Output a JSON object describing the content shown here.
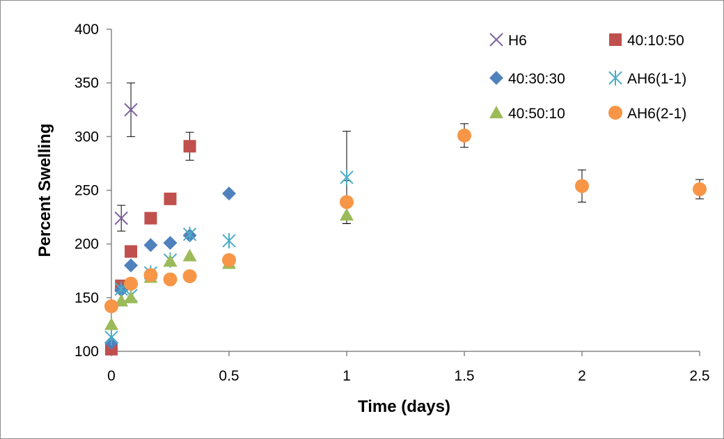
{
  "chart_data": {
    "type": "scatter",
    "xlabel": "Time (days)",
    "ylabel": "Percent Swelling",
    "xlim": [
      0,
      2.5
    ],
    "ylim": [
      100,
      400
    ],
    "xticks": [
      "0",
      "0.5",
      "1",
      "1.5",
      "2",
      "2.5"
    ],
    "yticks": [
      "100",
      "150",
      "200",
      "250",
      "300",
      "350",
      "400"
    ],
    "grid": false,
    "legend_position": "top-right",
    "series": [
      {
        "name": "H6",
        "marker": "x",
        "color": "#8064a2",
        "points": [
          {
            "x": 0.042,
            "y": 224,
            "err": 12
          },
          {
            "x": 0.083,
            "y": 325,
            "err": 25
          }
        ]
      },
      {
        "name": "40:10:50",
        "marker": "square",
        "color": "#c0504d",
        "points": [
          {
            "x": 0,
            "y": 102
          },
          {
            "x": 0.042,
            "y": 161
          },
          {
            "x": 0.083,
            "y": 193
          },
          {
            "x": 0.167,
            "y": 224
          },
          {
            "x": 0.25,
            "y": 242
          },
          {
            "x": 0.333,
            "y": 291,
            "err": 13
          }
        ]
      },
      {
        "name": "40:30:30",
        "marker": "diamond",
        "color": "#4f81bd",
        "points": [
          {
            "x": 0,
            "y": 108
          },
          {
            "x": 0.042,
            "y": 157
          },
          {
            "x": 0.083,
            "y": 180
          },
          {
            "x": 0.167,
            "y": 199
          },
          {
            "x": 0.25,
            "y": 201
          },
          {
            "x": 0.333,
            "y": 208
          },
          {
            "x": 0.5,
            "y": 247
          }
        ]
      },
      {
        "name": "AH6(1-1)",
        "marker": "asterisk",
        "color": "#4bacc6",
        "points": [
          {
            "x": 0,
            "y": 113
          },
          {
            "x": 0.042,
            "y": 158
          },
          {
            "x": 0.083,
            "y": 152
          },
          {
            "x": 0.167,
            "y": 173
          },
          {
            "x": 0.25,
            "y": 185
          },
          {
            "x": 0.333,
            "y": 209
          },
          {
            "x": 0.5,
            "y": 203
          },
          {
            "x": 1.0,
            "y": 262,
            "err": 43
          }
        ]
      },
      {
        "name": "40:50:10",
        "marker": "triangle",
        "color": "#9bbb59",
        "points": [
          {
            "x": 0,
            "y": 125
          },
          {
            "x": 0.042,
            "y": 147
          },
          {
            "x": 0.083,
            "y": 150
          },
          {
            "x": 0.167,
            "y": 169
          },
          {
            "x": 0.25,
            "y": 184
          },
          {
            "x": 0.333,
            "y": 189
          },
          {
            "x": 0.5,
            "y": 182
          },
          {
            "x": 1.0,
            "y": 227
          }
        ]
      },
      {
        "name": "AH6(2-1)",
        "marker": "circle",
        "color": "#f79646",
        "points": [
          {
            "x": 0,
            "y": 142
          },
          {
            "x": 0.083,
            "y": 163
          },
          {
            "x": 0.167,
            "y": 171
          },
          {
            "x": 0.25,
            "y": 167
          },
          {
            "x": 0.333,
            "y": 170
          },
          {
            "x": 0.5,
            "y": 185
          },
          {
            "x": 1.0,
            "y": 239,
            "err": 20
          },
          {
            "x": 1.5,
            "y": 301,
            "err": 11
          },
          {
            "x": 2.0,
            "y": 254,
            "err": 15
          },
          {
            "x": 2.5,
            "y": 251,
            "err": 9
          }
        ]
      }
    ],
    "legend_order": [
      "H6",
      "40:10:50",
      "40:30:30",
      "AH6(1-1)",
      "40:50:10",
      "AH6(2-1)"
    ]
  }
}
